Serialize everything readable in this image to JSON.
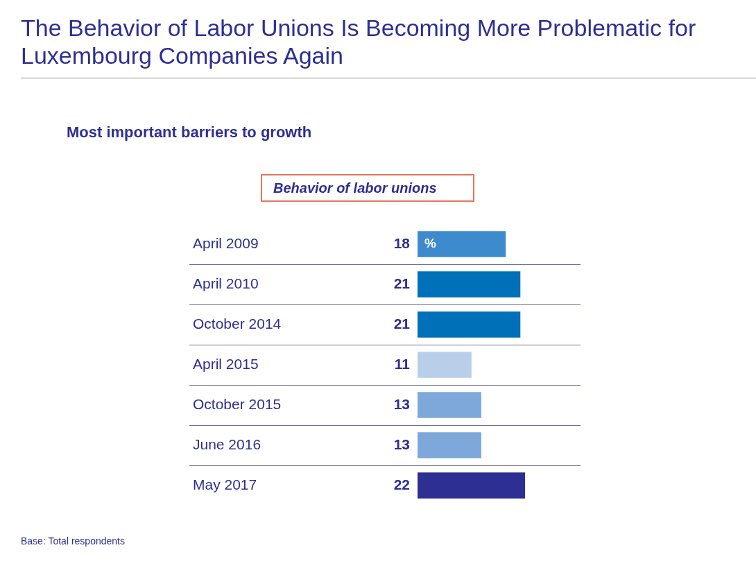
{
  "chart_data": {
    "type": "bar",
    "orientation": "horizontal",
    "title": "The Behavior of Labor Unions Is Becoming More Problematic for Luxembourg Companies Again",
    "subtitle": "Most important barriers to growth",
    "legend_title": "Behavior of labor unions",
    "xlabel": "%",
    "categories": [
      "April 2009",
      "April 2010",
      "October 2014",
      "April 2015",
      "October 2015",
      "June 2016",
      "May 2017"
    ],
    "values": [
      18,
      21,
      21,
      11,
      13,
      13,
      22
    ],
    "colors": [
      "#3d8bcd",
      "#0070b8",
      "#0070b8",
      "#b9cfe9",
      "#7ea8da",
      "#7ea8da",
      "#2d2f92"
    ],
    "data_labels": true,
    "grid": "y",
    "legend": false,
    "annotations": [
      "Base: Total respondents"
    ]
  }
}
